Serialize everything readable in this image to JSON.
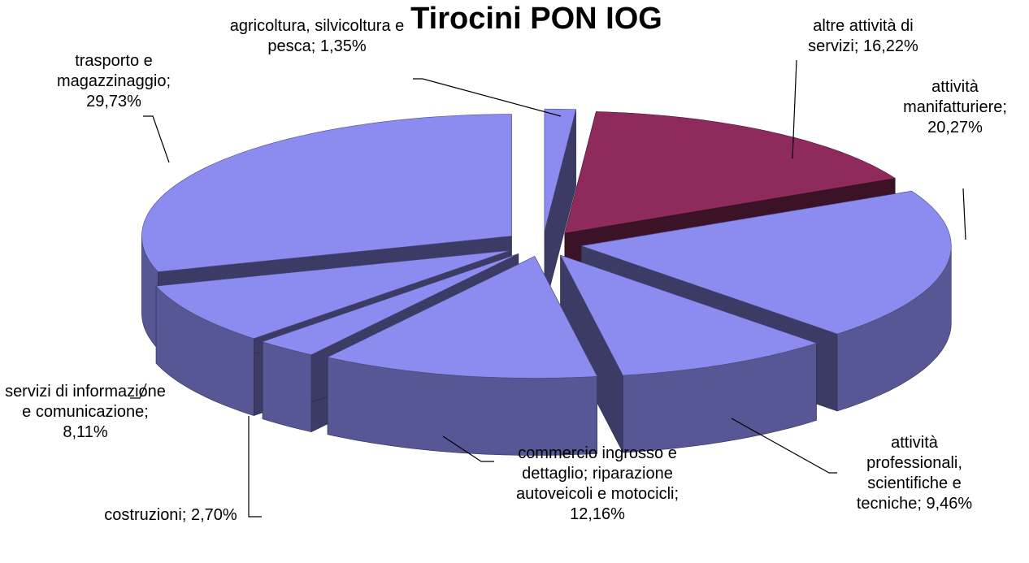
{
  "chart_data": {
    "type": "pie",
    "title": "Tirocini PON IOG",
    "categories": [
      "agricoltura, silvicoltura e pesca;",
      "altre attività di servizi;",
      "attività manifatturiere;",
      "attività professionali, scientifiche e tecniche;",
      "commercio ingrosso e dettaglio; riparazione autoveicoli e motocicli;",
      "costruzioni;",
      "servizi di informazione e comunicazione;",
      "trasporto e magazzinaggio;"
    ],
    "values": [
      1.35,
      16.22,
      20.27,
      9.46,
      12.16,
      2.7,
      8.11,
      29.73
    ],
    "value_labels": [
      "1,35%",
      "16,22%",
      "20,27%",
      "9,46%",
      "12,16%",
      "2,70%",
      "8,11%",
      "29,73%"
    ],
    "colors": [
      "#8c8cf0",
      "#8e2b5c",
      "#8c8cf0",
      "#8c8cf0",
      "#8c8cf0",
      "#8c8cf0",
      "#8c8cf0",
      "#8c8cf0"
    ]
  }
}
